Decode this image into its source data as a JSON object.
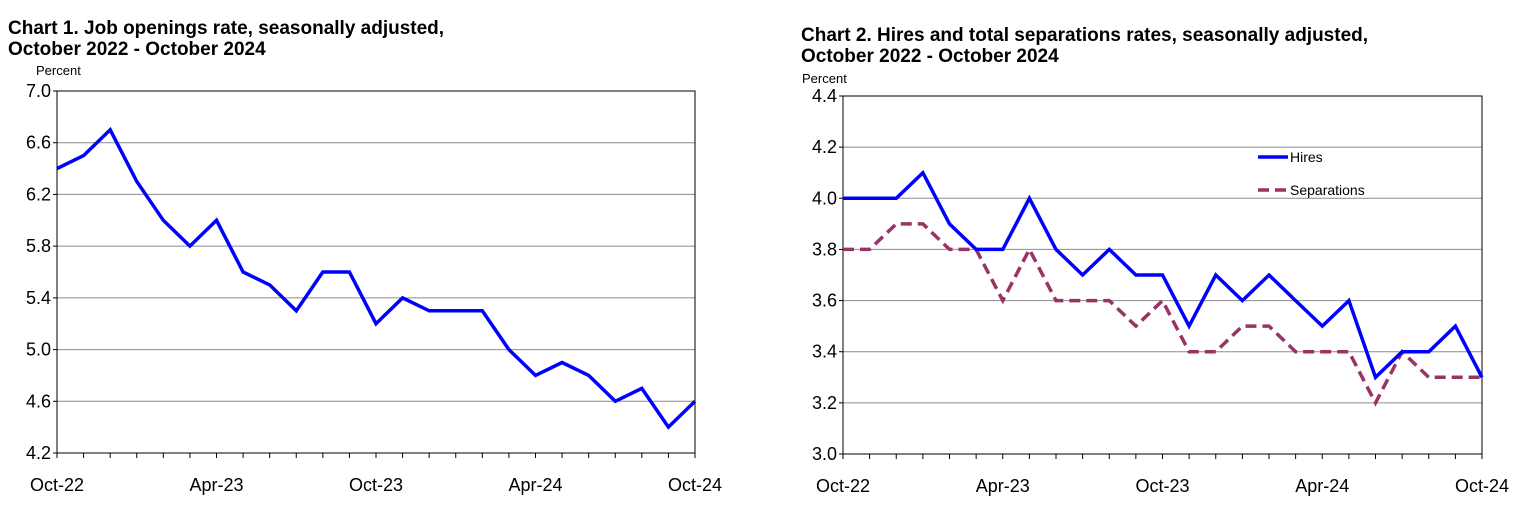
{
  "chart_data": [
    {
      "type": "line",
      "title": "Chart 1. Job openings rate, seasonally adjusted,",
      "subtitle": "October 2022 - October 2024",
      "ylabel": "Percent",
      "ylim": [
        4.2,
        7.0
      ],
      "yticks": [
        "7.0",
        "6.6",
        "6.2",
        "5.8",
        "5.4",
        "5.0",
        "4.6",
        "4.2"
      ],
      "x_tick_labels": [
        "Oct-22",
        "Apr-23",
        "Oct-23",
        "Apr-24",
        "Oct-24"
      ],
      "x": [
        "Oct-22",
        "Nov-22",
        "Dec-22",
        "Jan-23",
        "Feb-23",
        "Mar-23",
        "Apr-23",
        "May-23",
        "Jun-23",
        "Jul-23",
        "Aug-23",
        "Sep-23",
        "Oct-23",
        "Nov-23",
        "Dec-23",
        "Jan-24",
        "Feb-24",
        "Mar-24",
        "Apr-24",
        "May-24",
        "Jun-24",
        "Jul-24",
        "Aug-24",
        "Sep-24",
        "Oct-24"
      ],
      "grid": true,
      "series": [
        {
          "color": "#0000ff",
          "values": [
            6.4,
            6.5,
            6.7,
            6.3,
            6.0,
            5.8,
            6.0,
            5.6,
            5.5,
            5.3,
            5.6,
            5.6,
            5.2,
            5.4,
            5.3,
            5.3,
            5.3,
            5.0,
            4.8,
            4.9,
            4.8,
            4.6,
            4.7,
            4.4,
            4.6
          ]
        }
      ]
    },
    {
      "type": "line",
      "title": "Chart 2. Hires and total separations rates, seasonally adjusted,",
      "subtitle": "October 2022 - October 2024",
      "ylabel": "Percent",
      "ylim": [
        3.0,
        4.4
      ],
      "yticks": [
        "4.4",
        "4.2",
        "4.0",
        "3.8",
        "3.6",
        "3.4",
        "3.2",
        "3.0"
      ],
      "x_tick_labels": [
        "Oct-22",
        "Apr-23",
        "Oct-23",
        "Apr-24",
        "Oct-24"
      ],
      "x": [
        "Oct-22",
        "Nov-22",
        "Dec-22",
        "Jan-23",
        "Feb-23",
        "Mar-23",
        "Apr-23",
        "May-23",
        "Jun-23",
        "Jul-23",
        "Aug-23",
        "Sep-23",
        "Oct-23",
        "Nov-23",
        "Dec-23",
        "Jan-24",
        "Feb-24",
        "Mar-24",
        "Apr-24",
        "May-24",
        "Jun-24",
        "Jul-24",
        "Aug-24",
        "Sep-24",
        "Oct-24"
      ],
      "grid": true,
      "legend": "top-right",
      "series": [
        {
          "name": "Hires",
          "color": "#0000ff",
          "dash": false,
          "values": [
            4.0,
            4.0,
            4.0,
            4.1,
            3.9,
            3.8,
            3.8,
            4.0,
            3.8,
            3.7,
            3.8,
            3.7,
            3.7,
            3.5,
            3.7,
            3.6,
            3.7,
            3.6,
            3.5,
            3.6,
            3.3,
            3.4,
            3.4,
            3.5,
            3.3
          ]
        },
        {
          "name": "Separations",
          "color": "#993366",
          "dash": true,
          "values": [
            3.8,
            3.8,
            3.9,
            3.9,
            3.8,
            3.8,
            3.6,
            3.8,
            3.6,
            3.6,
            3.6,
            3.5,
            3.6,
            3.4,
            3.4,
            3.5,
            3.5,
            3.4,
            3.4,
            3.4,
            3.2,
            3.4,
            3.3,
            3.3,
            3.3
          ]
        }
      ]
    }
  ]
}
